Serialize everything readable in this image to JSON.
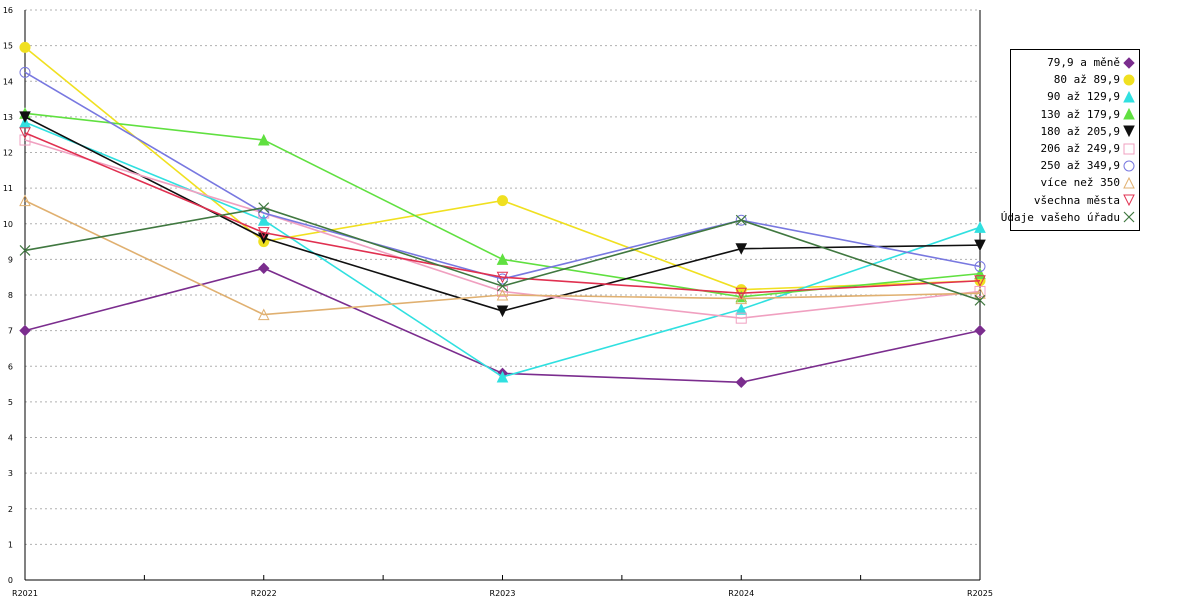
{
  "chart_data": {
    "type": "line",
    "categories": [
      "R2021",
      "R2022",
      "R2023",
      "R2024",
      "R2025"
    ],
    "ylim": [
      0,
      16
    ],
    "yticks": [
      0,
      1,
      2,
      3,
      4,
      5,
      6,
      7,
      8,
      9,
      10,
      11,
      12,
      13,
      14,
      15,
      16
    ],
    "grid": true,
    "legend_position": "right",
    "series": [
      {
        "name": "79,9 a měně",
        "color": "#7b2d8e",
        "marker": "diamond",
        "values": [
          7.0,
          8.75,
          5.8,
          5.55,
          7.0
        ]
      },
      {
        "name": "80 až 89,9",
        "color": "#f0e020",
        "marker": "circle",
        "values": [
          14.95,
          9.5,
          10.65,
          8.15,
          8.4
        ]
      },
      {
        "name": "90 až 129,9",
        "color": "#30e0e0",
        "marker": "triangle-up",
        "values": [
          12.85,
          10.1,
          5.7,
          7.6,
          9.9
        ]
      },
      {
        "name": "130 až 179,9",
        "color": "#60e040",
        "marker": "triangle-up",
        "values": [
          13.1,
          12.35,
          9.0,
          7.95,
          8.6
        ]
      },
      {
        "name": "180 až 205,9",
        "color": "#101010",
        "marker": "triangle-down",
        "values": [
          13.0,
          9.6,
          7.55,
          9.3,
          9.4
        ]
      },
      {
        "name": "206 až 249,9",
        "color": "#f0a0c0",
        "marker": "square-open",
        "values": [
          12.35,
          10.3,
          8.1,
          7.35,
          8.1
        ]
      },
      {
        "name": "250 až 349,9",
        "color": "#7878e0",
        "marker": "circle-open",
        "values": [
          14.25,
          10.3,
          8.45,
          10.1,
          8.8
        ]
      },
      {
        "name": "více než 350",
        "color": "#e0b070",
        "marker": "triangle-open",
        "values": [
          10.65,
          7.45,
          8.0,
          7.9,
          8.05
        ]
      },
      {
        "name": "všechna města",
        "color": "#e03050",
        "marker": "tri-down-open",
        "values": [
          12.55,
          9.75,
          8.5,
          8.05,
          8.4
        ]
      },
      {
        "name": "Údaje vašeho úřadu",
        "color": "#407840",
        "marker": "x",
        "values": [
          9.25,
          10.45,
          8.25,
          10.1,
          7.85
        ]
      }
    ]
  }
}
